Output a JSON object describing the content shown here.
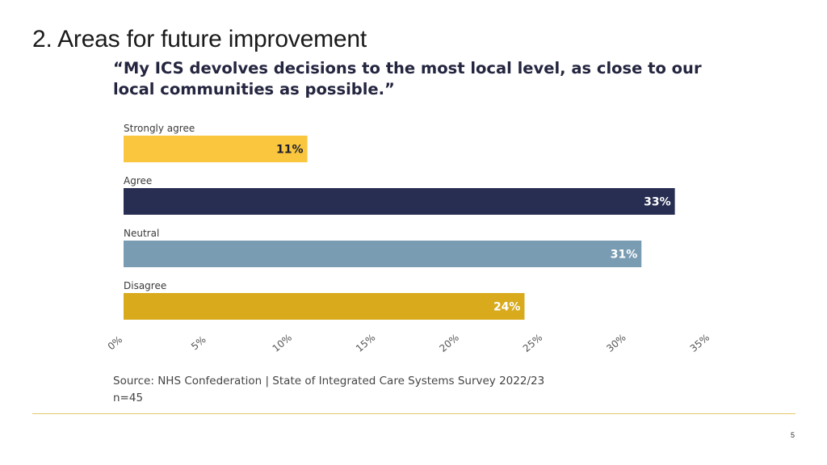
{
  "slide": {
    "title": "2. Areas for future improvement",
    "page_number": "5"
  },
  "chart_data": {
    "type": "bar",
    "orientation": "horizontal",
    "title": "“My ICS devolves decisions to the most local level, as close to our local communities as possible.”",
    "categories": [
      "Strongly agree",
      "Agree",
      "Neutral",
      "Disagree"
    ],
    "values": [
      11,
      33,
      31,
      24
    ],
    "value_labels": [
      "11%",
      "33%",
      "31%",
      "24%"
    ],
    "colors": [
      "#f9c63e",
      "#282e52",
      "#7a9cb3",
      "#d8aa1c"
    ],
    "value_label_colors": [
      "#1f1f2e",
      "#ffffff",
      "#ffffff",
      "#ffffff"
    ],
    "xlim": [
      0,
      35
    ],
    "xticks": [
      0,
      5,
      10,
      15,
      20,
      25,
      30,
      35
    ],
    "xtick_labels": [
      "0%",
      "5%",
      "10%",
      "15%",
      "20%",
      "25%",
      "30%",
      "35%"
    ],
    "grid": false,
    "legend": "none"
  },
  "source": {
    "line1": "Source: NHS Confederation | State of Integrated Care Systems Survey 2022/23",
    "line2": "n=45"
  }
}
